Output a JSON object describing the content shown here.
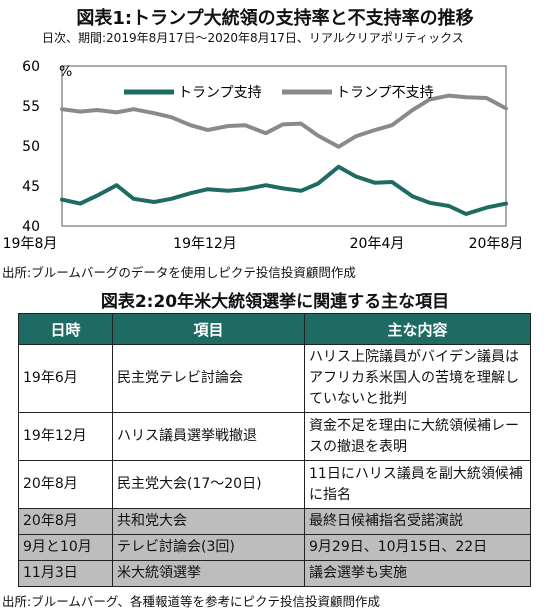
{
  "figure1": {
    "title": "図表1:トランプ大統領の支持率と不支持率の推移",
    "subtitle": "日次、期間:2019年8月17日〜2020年8月17日、リアルクリアポリティックス",
    "source": "出所:ブルームバーグのデータを使用しピクテ投信投資顧問作成"
  },
  "chart_data": {
    "type": "line",
    "ylim": [
      40,
      60
    ],
    "yticks": [
      "40",
      "45",
      "50",
      "55",
      "60"
    ],
    "yunit": "%",
    "xticks": [
      "19年8月",
      "19年12月",
      "20年4月",
      "20年8月"
    ],
    "grid": false,
    "legend_position": "top",
    "x": [
      "2019-08-17",
      "2019-09-01",
      "2019-09-15",
      "2019-10-01",
      "2019-10-15",
      "2019-11-01",
      "2019-11-15",
      "2019-12-01",
      "2019-12-15",
      "2020-01-01",
      "2020-01-15",
      "2020-02-01",
      "2020-02-15",
      "2020-03-01",
      "2020-03-15",
      "2020-04-01",
      "2020-04-15",
      "2020-05-01",
      "2020-05-15",
      "2020-06-01",
      "2020-06-15",
      "2020-07-01",
      "2020-07-15",
      "2020-08-01",
      "2020-08-17"
    ],
    "series": [
      {
        "name": "トランプ支持",
        "color": "#1e6b63",
        "values": [
          43.3,
          42.8,
          43.8,
          45.1,
          43.4,
          43.0,
          43.4,
          44.1,
          44.6,
          44.4,
          44.6,
          45.1,
          44.7,
          44.4,
          45.3,
          47.4,
          46.2,
          45.4,
          45.5,
          43.7,
          42.9,
          42.5,
          41.5,
          42.3,
          42.8
        ]
      },
      {
        "name": "トランプ不支持",
        "color": "#8a8a8a",
        "values": [
          54.6,
          54.3,
          54.5,
          54.2,
          54.6,
          54.1,
          53.6,
          52.6,
          52.0,
          52.5,
          52.6,
          51.6,
          52.7,
          52.8,
          51.3,
          49.9,
          51.2,
          52.0,
          52.6,
          54.5,
          55.8,
          56.3,
          56.1,
          56.0,
          54.7
        ]
      }
    ]
  },
  "figure2": {
    "title": "図表2:20年米大統領選挙に関連する主な項目",
    "headers": [
      "日時",
      "項目",
      "主な内容"
    ],
    "rows": [
      {
        "date": "19年6月",
        "item": "民主党テレビ討論会",
        "content": "ハリス上院議員がバイデン議員はアフリカ系米国人の苦境を理解していないと批判"
      },
      {
        "date": "19年12月",
        "item": "ハリス議員選挙戦撤退",
        "content": "資金不足を理由に大統領候補レースの撤退を表明"
      },
      {
        "date": "20年8月",
        "item": "民主党大会(17〜20日)",
        "content": "11日にハリス議員を副大統領候補に指名"
      },
      {
        "date": "20年8月",
        "item": "共和党大会",
        "content": "最終日候補指名受諾演説"
      },
      {
        "date": "9月と10月",
        "item": "テレビ討論会(3回)",
        "content": "9月29日、10月15日、22日"
      },
      {
        "date": "11月3日",
        "item": "米大統領選挙",
        "content": "議会選挙も実施"
      }
    ],
    "source": "出所:ブルームバーグ、各種報道等を参考にピクテ投信投資顧問作成"
  }
}
